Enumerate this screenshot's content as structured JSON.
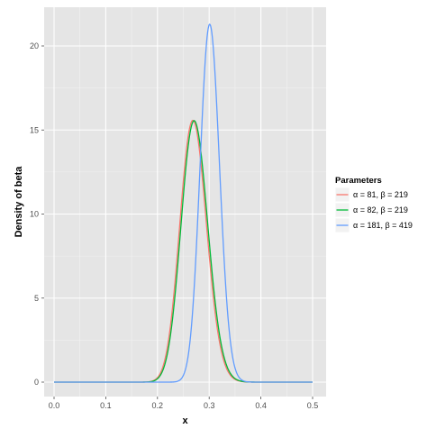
{
  "chart_data": {
    "type": "line",
    "title": "",
    "xlabel": "x",
    "ylabel": "Density of beta",
    "xlim": [
      0.0,
      0.5
    ],
    "ylim": [
      0,
      22
    ],
    "x_ticks": [
      0.0,
      0.1,
      0.2,
      0.3,
      0.4,
      0.5
    ],
    "x_tick_labels": [
      "0.0",
      "0.1",
      "0.2",
      "0.3",
      "0.4",
      "0.5"
    ],
    "y_ticks": [
      0,
      5,
      10,
      15,
      20
    ],
    "y_tick_labels": [
      "0",
      "5",
      "10",
      "15",
      "20"
    ],
    "grid": true,
    "legend": {
      "title": "Parameters",
      "placement": "right"
    },
    "series": [
      {
        "name": "α = 81, β = 219",
        "alpha": 81,
        "beta": 219,
        "color": "#f8766d"
      },
      {
        "name": "α = 82, β = 219",
        "alpha": 82,
        "beta": 219,
        "color": "#00ba38"
      },
      {
        "name": "α = 181, β = 419",
        "alpha": 181,
        "beta": 419,
        "color": "#619cff"
      }
    ]
  }
}
